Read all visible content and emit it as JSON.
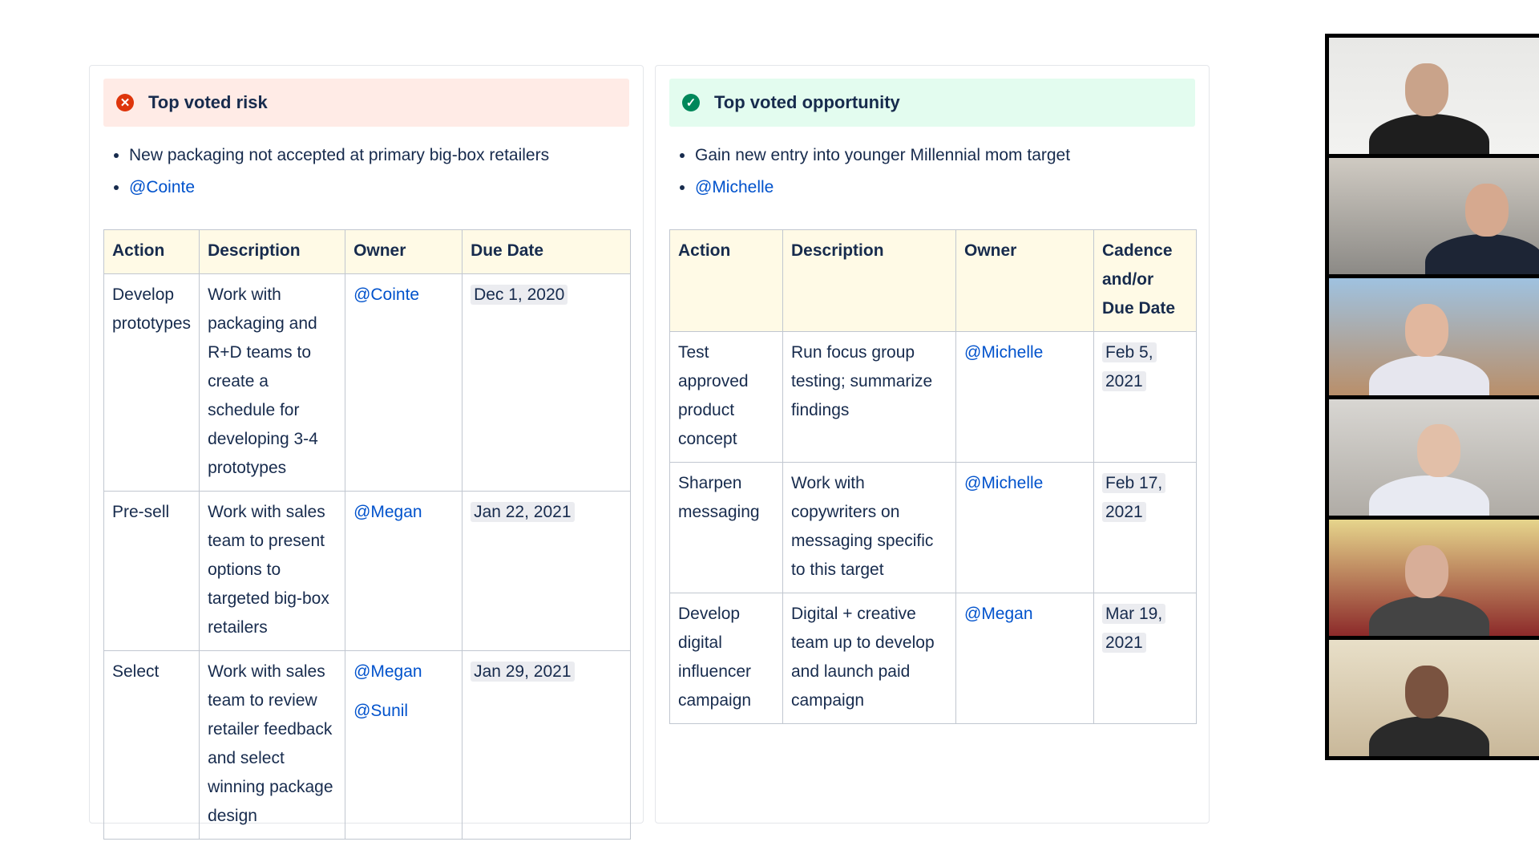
{
  "risk": {
    "title": "Top voted risk",
    "icon": "error-circle-icon",
    "bullets": [
      "New packaging not accepted at primary big-box retailers",
      "@Cointe"
    ],
    "headers": [
      "Action",
      "Description",
      "Owner",
      "Due Date"
    ],
    "rows": [
      {
        "action": "Develop prototypes",
        "description": "Work with packaging and R+D teams to create a schedule for developing 3-4 prototypes",
        "owners": [
          "@Cointe"
        ],
        "date": "Dec 1, 2020"
      },
      {
        "action": "Pre-sell",
        "description": "Work with sales team to present options to targeted big-box retailers",
        "owners": [
          "@Megan"
        ],
        "date": "Jan 22, 2021"
      },
      {
        "action": "Select",
        "description": "Work with sales team to review retailer feedback and select winning package design",
        "owners": [
          "@Megan",
          "@Sunil"
        ],
        "date": "Jan 29, 2021"
      }
    ]
  },
  "opportunity": {
    "title": "Top voted opportunity",
    "icon": "check-circle-icon",
    "bullets": [
      "Gain new entry into younger Millennial mom target",
      "@Michelle"
    ],
    "headers": [
      "Action",
      "Description",
      "Owner",
      "Cadence and/or Due Date"
    ],
    "rows": [
      {
        "action": "Test approved product concept",
        "description": "Run focus group testing; summarize findings",
        "owners": [
          "@Michelle"
        ],
        "date": "Feb 5, 2021"
      },
      {
        "action": "Sharpen messaging",
        "description": "Work with copywriters on messaging specific to this target",
        "owners": [
          "@Michelle"
        ],
        "date": "Feb 17, 2021"
      },
      {
        "action": "Develop digital influencer campaign",
        "description": "Digital + creative team up to develop and launch paid campaign",
        "owners": [
          "@Megan"
        ],
        "date": "Mar 19, 2021"
      }
    ]
  },
  "colors": {
    "risk_bg": "#ffebe6",
    "risk_icon": "#de350b",
    "opp_bg": "#e3fcef",
    "opp_icon": "#00875a",
    "header_bg": "#fffae6",
    "link": "#0052cc"
  },
  "video_participants": 6
}
